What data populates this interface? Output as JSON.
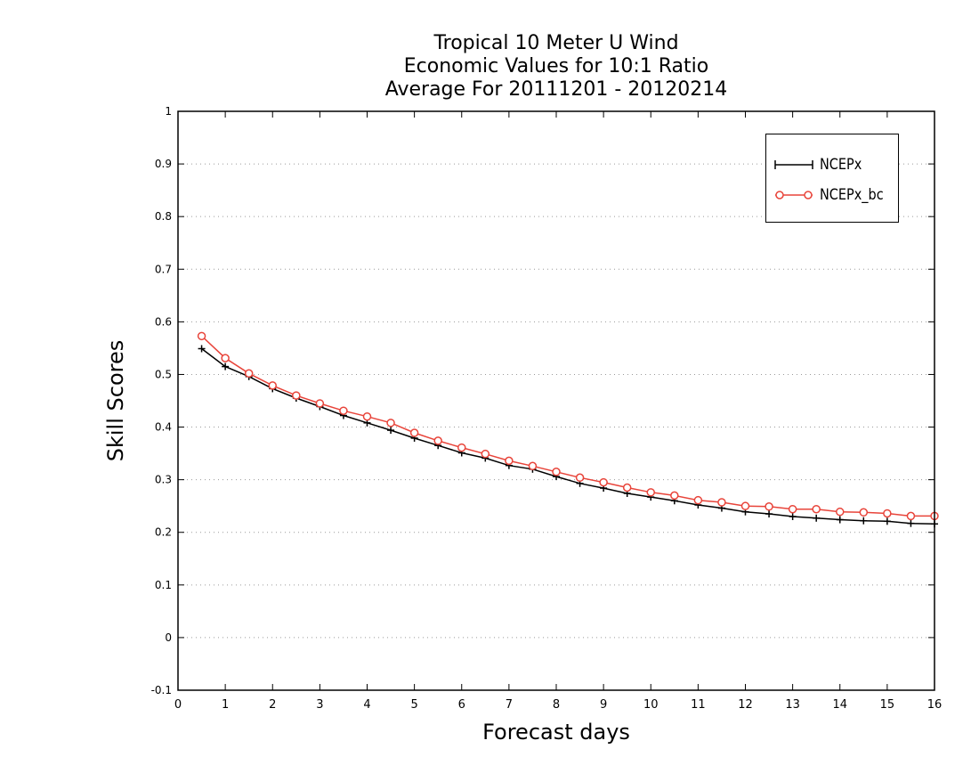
{
  "chart_data": {
    "type": "line",
    "title": [
      "Tropical 10 Meter U Wind",
      "Economic Values for 10:1 Ratio",
      "Average For 20111201 - 20120214"
    ],
    "xlabel": "Forecast days",
    "ylabel": "Skill Scores",
    "xlim": [
      0,
      16
    ],
    "ylim": [
      -0.1,
      1
    ],
    "xticks": [
      0,
      1,
      2,
      3,
      4,
      5,
      6,
      7,
      8,
      9,
      10,
      11,
      12,
      13,
      14,
      15,
      16
    ],
    "yticks": [
      -0.1,
      0,
      0.1,
      0.2,
      0.3,
      0.4,
      0.5,
      0.6,
      0.7,
      0.8,
      0.9,
      1
    ],
    "ytick_labels": [
      "-0.1",
      "0",
      "0.1",
      "0.2",
      "0.3",
      "0.4",
      "0.5",
      "0.6",
      "0.7",
      "0.8",
      "0.9",
      "1"
    ],
    "grid": "horizontal dotted",
    "legend": "top-right",
    "x": [
      0.5,
      1,
      1.5,
      2,
      2.5,
      3,
      3.5,
      4,
      4.5,
      5,
      5.5,
      6,
      6.5,
      7,
      7.5,
      8,
      8.5,
      9,
      9.5,
      10,
      10.5,
      11,
      11.5,
      12,
      12.5,
      13,
      13.5,
      14,
      14.5,
      15,
      15.5,
      16
    ],
    "series": [
      {
        "name": "NCEPx",
        "color": "#000000",
        "marker": "plus",
        "values": [
          0.549,
          0.515,
          0.496,
          0.473,
          0.455,
          0.439,
          0.422,
          0.408,
          0.394,
          0.379,
          0.365,
          0.351,
          0.341,
          0.327,
          0.32,
          0.306,
          0.293,
          0.284,
          0.274,
          0.267,
          0.26,
          0.252,
          0.246,
          0.239,
          0.235,
          0.23,
          0.227,
          0.224,
          0.222,
          0.221,
          0.217,
          0.216
        ]
      },
      {
        "name": "NCEPx_bc",
        "color": "#e8443a",
        "marker": "circle",
        "values": [
          0.573,
          0.531,
          0.502,
          0.479,
          0.46,
          0.445,
          0.431,
          0.42,
          0.408,
          0.389,
          0.374,
          0.361,
          0.349,
          0.336,
          0.326,
          0.315,
          0.304,
          0.295,
          0.285,
          0.276,
          0.27,
          0.261,
          0.257,
          0.25,
          0.249,
          0.244,
          0.244,
          0.239,
          0.238,
          0.236,
          0.231,
          0.231
        ]
      }
    ]
  }
}
